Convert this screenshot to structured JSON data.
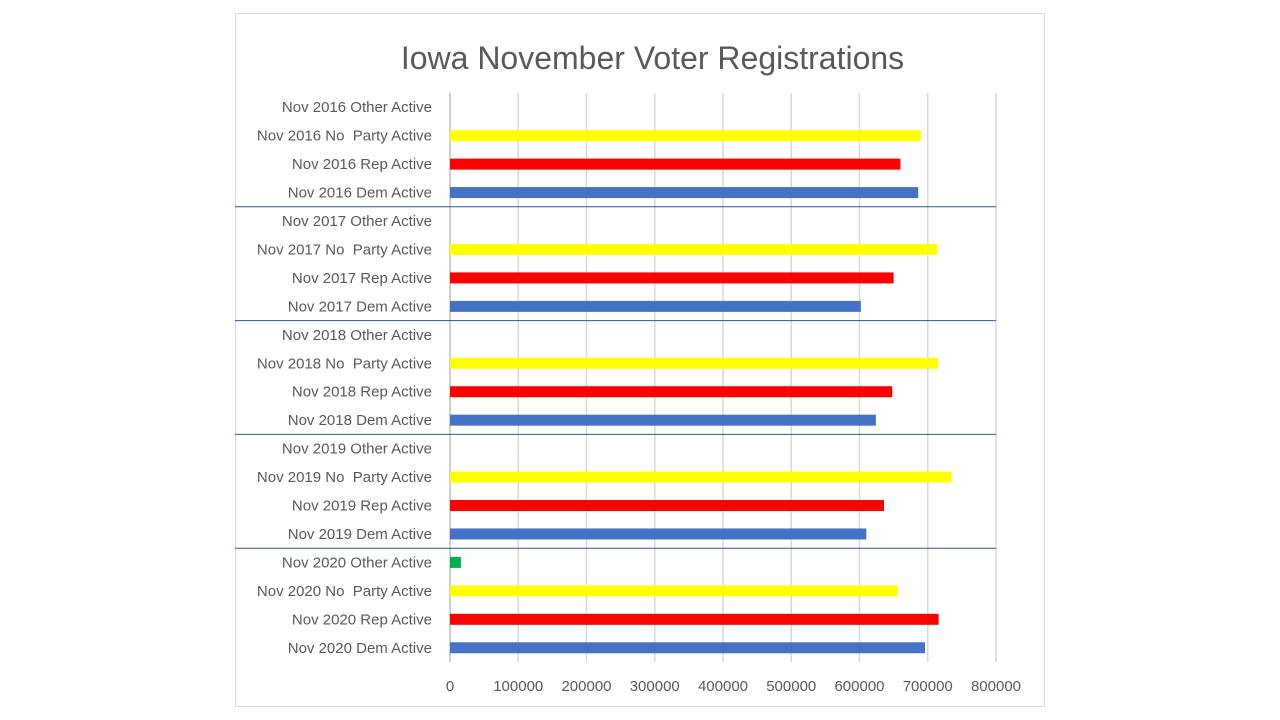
{
  "chart_data": {
    "type": "bar",
    "orientation": "horizontal",
    "title": "Iowa November Voter Registrations",
    "xlabel": "",
    "ylabel": "",
    "xlim": [
      0,
      800000
    ],
    "x_ticks": [
      0,
      100000,
      200000,
      300000,
      400000,
      500000,
      600000,
      700000,
      800000
    ],
    "x_tick_labels": [
      "0",
      "100000",
      "200000",
      "300000",
      "400000",
      "500000",
      "600000",
      "700000",
      "800000"
    ],
    "grid": "vertical",
    "legend": "none",
    "groups": [
      "Nov 2016",
      "Nov 2017",
      "Nov 2018",
      "Nov 2019",
      "Nov 2020"
    ],
    "colors": {
      "Dem": "#4472c4",
      "Rep": "#ff0000",
      "NoParty": "#ffff00",
      "Other": "#00b050",
      "grid": "#d9d9d9",
      "separator": "#2f5597",
      "text": "#595959"
    },
    "categories": [
      "Nov 2016 Other Active",
      "Nov 2016 No  Party Active",
      "Nov 2016 Rep Active",
      "Nov 2016 Dem Active",
      "Nov 2017 Other Active",
      "Nov 2017 No  Party Active",
      "Nov 2017 Rep Active",
      "Nov 2017 Dem Active",
      "Nov 2018 Other Active",
      "Nov 2018 No  Party Active",
      "Nov 2018 Rep Active",
      "Nov 2018 Dem Active",
      "Nov 2019 Other Active",
      "Nov 2019 No  Party Active",
      "Nov 2019 Rep Active",
      "Nov 2019 Dem Active",
      "Nov 2020 Other Active",
      "Nov 2020 No  Party Active",
      "Nov 2020 Rep Active",
      "Nov 2020 Dem Active"
    ],
    "values": [
      0,
      690000,
      660000,
      686000,
      0,
      714000,
      650000,
      602000,
      0,
      715000,
      648000,
      624000,
      0,
      735000,
      636000,
      610000,
      16000,
      656000,
      716000,
      696000
    ],
    "bar_party": [
      "Other",
      "NoParty",
      "Rep",
      "Dem",
      "Other",
      "NoParty",
      "Rep",
      "Dem",
      "Other",
      "NoParty",
      "Rep",
      "Dem",
      "Other",
      "NoParty",
      "Rep",
      "Dem",
      "Other",
      "NoParty",
      "Rep",
      "Dem"
    ]
  }
}
